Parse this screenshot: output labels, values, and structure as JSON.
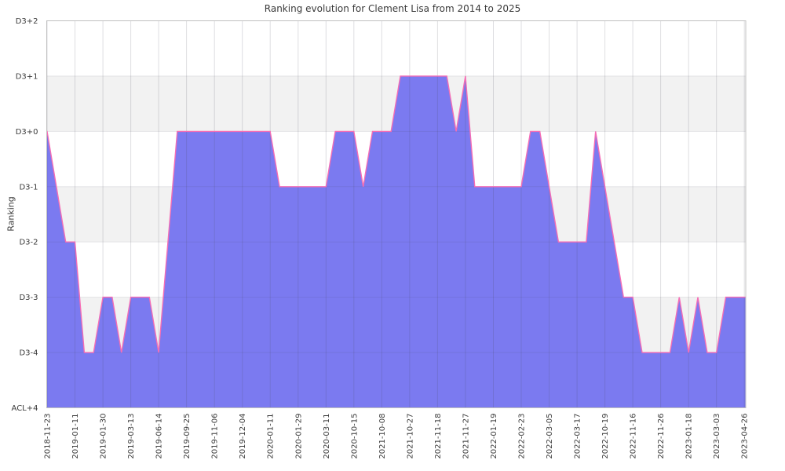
{
  "chart_data": {
    "type": "area",
    "title": "Ranking evolution for Clement Lisa from 2014 to 2025",
    "xlabel": "",
    "ylabel": "Ranking",
    "grid": true,
    "legend": "none",
    "y_tick_labels": [
      "D3+2",
      "D3+1",
      "D3+0",
      "D3-1",
      "D3-2",
      "D3-3",
      "D3-4",
      "ACL+4"
    ],
    "y_tick_ranks": [
      2,
      1,
      0,
      -1,
      -2,
      -3,
      -4,
      -5
    ],
    "ylim_ranks": [
      -5,
      2
    ],
    "x_tick_labels": [
      "2018-11-23",
      "2019-01-11",
      "2019-01-30",
      "2019-03-13",
      "2019-06-14",
      "2019-09-25",
      "2019-11-06",
      "2019-12-04",
      "2020-01-11",
      "2020-01-29",
      "2020-03-11",
      "2020-10-15",
      "2021-10-08",
      "2021-10-27",
      "2021-11-18",
      "2021-11-27",
      "2022-01-19",
      "2022-02-23",
      "2022-03-05",
      "2022-03-17",
      "2022-10-19",
      "2022-11-16",
      "2022-11-26",
      "2023-01-18",
      "2023-03-03",
      "2023-04-26"
    ],
    "series": [
      {
        "name": "Ranking",
        "values_at_ticks": [
          {
            "date": "2018-11-23",
            "rank": 0,
            "label": "D3+0"
          },
          {
            "date": "2019-01-11",
            "rank": -2,
            "label": "D3-2"
          },
          {
            "date": "2019-01-30",
            "rank": -3,
            "label": "D3-3"
          },
          {
            "date": "2019-03-13",
            "rank": -3,
            "label": "D3-3"
          },
          {
            "date": "2019-06-14",
            "rank": -4,
            "label": "D3-4"
          },
          {
            "date": "2019-09-25",
            "rank": 0,
            "label": "D3+0"
          },
          {
            "date": "2019-11-06",
            "rank": 0,
            "label": "D3+0"
          },
          {
            "date": "2019-12-04",
            "rank": 0,
            "label": "D3+0"
          },
          {
            "date": "2020-01-11",
            "rank": 0,
            "label": "D3+0"
          },
          {
            "date": "2020-01-29",
            "rank": -1,
            "label": "D3-1"
          },
          {
            "date": "2020-03-11",
            "rank": -1,
            "label": "D3-1"
          },
          {
            "date": "2020-10-15",
            "rank": 0,
            "label": "D3+0"
          },
          {
            "date": "2021-10-08",
            "rank": 0,
            "label": "D3+0"
          },
          {
            "date": "2021-10-27",
            "rank": 1,
            "label": "D3+1"
          },
          {
            "date": "2021-11-18",
            "rank": 1,
            "label": "D3+1"
          },
          {
            "date": "2021-11-27",
            "rank": 1,
            "label": "D3+1"
          },
          {
            "date": "2022-01-19",
            "rank": -1,
            "label": "D3-1"
          },
          {
            "date": "2022-02-23",
            "rank": -1,
            "label": "D3-1"
          },
          {
            "date": "2022-03-05",
            "rank": -1,
            "label": "D3-1"
          },
          {
            "date": "2022-03-17",
            "rank": -2,
            "label": "D3-2"
          },
          {
            "date": "2022-10-19",
            "rank": -1,
            "label": "D3-1"
          },
          {
            "date": "2022-11-16",
            "rank": -3,
            "label": "D3-3"
          },
          {
            "date": "2022-11-26",
            "rank": -4,
            "label": "D3-4"
          },
          {
            "date": "2023-01-18",
            "rank": -4,
            "label": "D3-4"
          },
          {
            "date": "2023-03-03",
            "rank": -4,
            "label": "D3-4"
          },
          {
            "date": "2023-04-26",
            "rank": -3,
            "label": "D3-3"
          }
        ]
      }
    ],
    "points_per_tick": 3,
    "outline_vertices": [
      [
        0,
        0
      ],
      [
        2,
        -2
      ],
      [
        3,
        -2
      ],
      [
        4,
        -4
      ],
      [
        5,
        -4
      ],
      [
        6,
        -3
      ],
      [
        7,
        -3
      ],
      [
        8,
        -4
      ],
      [
        9,
        -3
      ],
      [
        11,
        -3
      ],
      [
        12,
        -4
      ],
      [
        14,
        0
      ],
      [
        24,
        0
      ],
      [
        25,
        -1
      ],
      [
        30,
        -1
      ],
      [
        31,
        0
      ],
      [
        33,
        0
      ],
      [
        34,
        -1
      ],
      [
        35,
        0
      ],
      [
        37,
        0
      ],
      [
        38,
        1
      ],
      [
        43,
        1
      ],
      [
        44,
        0
      ],
      [
        45,
        1
      ],
      [
        46,
        -1
      ],
      [
        51,
        -1
      ],
      [
        52,
        0
      ],
      [
        53,
        0
      ],
      [
        55,
        -2
      ],
      [
        58,
        -2
      ],
      [
        59,
        0
      ],
      [
        62,
        -3
      ],
      [
        63,
        -3
      ],
      [
        64,
        -4
      ],
      [
        67,
        -4
      ],
      [
        68,
        -3
      ],
      [
        69,
        -4
      ],
      [
        70,
        -3
      ],
      [
        71,
        -4
      ],
      [
        72,
        -4
      ],
      [
        73,
        -3
      ],
      [
        75,
        -3
      ]
    ],
    "band_style": "alternating-rows",
    "colors": {
      "fill": "#7b7af0",
      "line": "#f56eb5",
      "shaded_band": "#f2f2f2",
      "plain_band": "#ffffff",
      "grid_vertical": "rgba(70,70,90,0.18)",
      "grid_horizontal": "rgba(70,70,90,0.12)",
      "frame": "#c0c0c0",
      "text": "#3a3a3a"
    }
  }
}
